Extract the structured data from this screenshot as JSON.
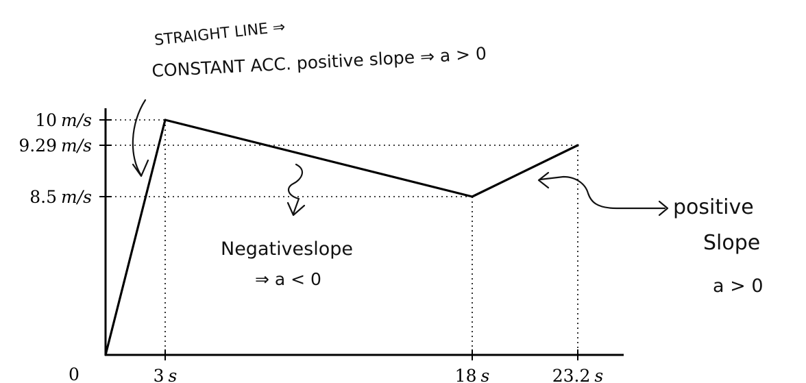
{
  "chart_data": {
    "type": "line",
    "title": "",
    "xlabel": "",
    "ylabel": "",
    "x": [
      0,
      3,
      18,
      23.2
    ],
    "series": [
      {
        "values": [
          0,
          10,
          8.5,
          9.29
        ]
      }
    ],
    "x_ticks": [
      {
        "value": 0,
        "num": "0",
        "unit": ""
      },
      {
        "value": 3,
        "num": "3",
        "unit": "s"
      },
      {
        "value": 18,
        "num": "18",
        "unit": "s"
      },
      {
        "value": 23.2,
        "num": "23.2",
        "unit": "s"
      }
    ],
    "y_ticks": [
      {
        "value": 10,
        "num": "10",
        "unit": "m/s"
      },
      {
        "value": 9.29,
        "num": "9.29",
        "unit": "m/s"
      },
      {
        "value": 8.5,
        "num": "8.5",
        "unit": "m/s"
      }
    ],
    "guides": "dotted",
    "annotations": {
      "top_line1": "STRAIGHT LINE ⇒",
      "top_line2": "CONSTANT ACC.  positive slope ⇒ a > 0",
      "neg_line1": "Negativeslope",
      "neg_line2": "⇒ a < 0",
      "pos_line1": "positive",
      "pos_line2": "Slope",
      "pos_line3": "a > 0"
    }
  }
}
